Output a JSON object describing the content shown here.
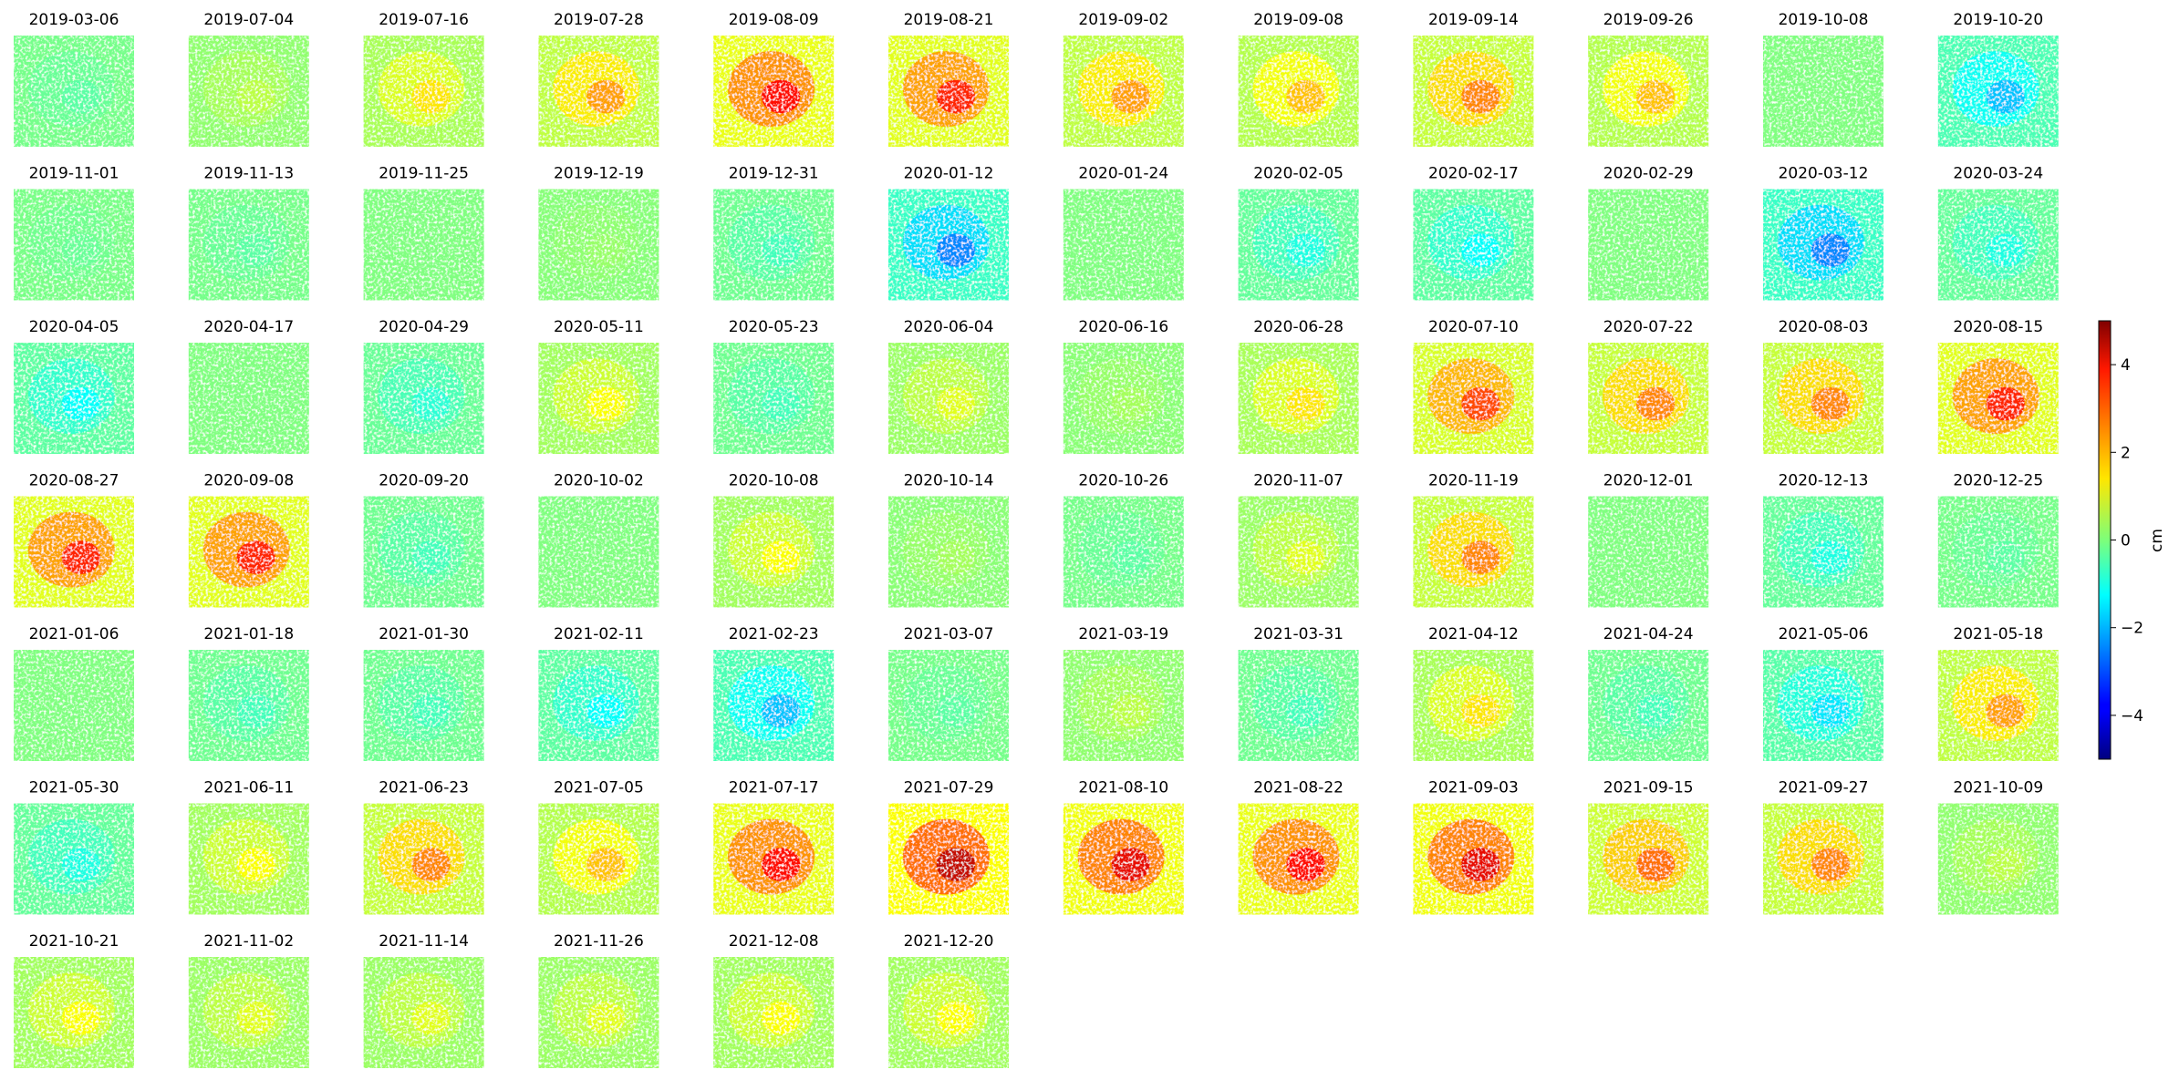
{
  "chart_data": {
    "type": "heatmap",
    "panel_titles": [
      "2019-03-06",
      "2019-07-04",
      "2019-07-16",
      "2019-07-28",
      "2019-08-09",
      "2019-08-21",
      "2019-09-02",
      "2019-09-08",
      "2019-09-14",
      "2019-09-26",
      "2019-10-08",
      "2019-10-20",
      "2019-11-01",
      "2019-11-13",
      "2019-11-25",
      "2019-12-19",
      "2019-12-31",
      "2020-01-12",
      "2020-01-24",
      "2020-02-05",
      "2020-02-17",
      "2020-02-29",
      "2020-03-12",
      "2020-03-24",
      "2020-04-05",
      "2020-04-17",
      "2020-04-29",
      "2020-05-11",
      "2020-05-23",
      "2020-06-04",
      "2020-06-16",
      "2020-06-28",
      "2020-07-10",
      "2020-07-22",
      "2020-08-03",
      "2020-08-15",
      "2020-08-27",
      "2020-09-08",
      "2020-09-20",
      "2020-10-02",
      "2020-10-08",
      "2020-10-14",
      "2020-10-26",
      "2020-11-07",
      "2020-11-19",
      "2020-12-01",
      "2020-12-13",
      "2020-12-25",
      "2021-01-06",
      "2021-01-18",
      "2021-01-30",
      "2021-02-11",
      "2021-02-23",
      "2021-03-07",
      "2021-03-19",
      "2021-03-31",
      "2021-04-12",
      "2021-04-24",
      "2021-05-06",
      "2021-05-18",
      "2021-05-30",
      "2021-06-11",
      "2021-06-23",
      "2021-07-05",
      "2021-07-17",
      "2021-07-29",
      "2021-08-10",
      "2021-08-22",
      "2021-09-03",
      "2021-09-15",
      "2021-09-27",
      "2021-10-09",
      "2021-10-21",
      "2021-11-02",
      "2021-11-14",
      "2021-11-26",
      "2021-12-08",
      "2021-12-20"
    ],
    "panel_mean_cm": [
      -0.3,
      0.5,
      1.2,
      1.8,
      3.0,
      2.8,
      1.8,
      1.5,
      2.0,
      1.5,
      0.0,
      -1.5,
      -0.2,
      -0.3,
      0.0,
      0.2,
      -0.5,
      -2.0,
      0.0,
      -0.8,
      -1.0,
      0.0,
      -2.0,
      -0.8,
      -1.0,
      0.0,
      -0.7,
      1.0,
      -0.5,
      0.8,
      0.3,
      1.2,
      2.5,
      2.0,
      2.0,
      2.8,
      2.8,
      2.8,
      -0.5,
      0.0,
      1.0,
      0.3,
      -0.3,
      0.8,
      2.0,
      0.0,
      -0.8,
      -0.3,
      0.0,
      -0.5,
      -0.5,
      -1.0,
      -1.5,
      -0.3,
      0.5,
      -0.5,
      1.2,
      -0.5,
      -1.2,
      1.8,
      -0.8,
      1.0,
      2.0,
      1.5,
      3.0,
      3.5,
      3.2,
      3.0,
      3.2,
      2.2,
      2.0,
      0.5,
      1.0,
      0.8,
      0.8,
      0.8,
      1.0,
      1.0
    ],
    "colormap": "jet",
    "colorbar": {
      "label": "cm",
      "range": [
        -5,
        5
      ],
      "ticks": [
        4,
        2,
        0,
        -2,
        -4
      ],
      "tick_labels": [
        "4",
        "2",
        "0",
        "−2",
        "−4"
      ]
    },
    "layout": {
      "rows": 7,
      "columns": 12,
      "panels": 78
    },
    "grid": false,
    "axes": "off"
  }
}
